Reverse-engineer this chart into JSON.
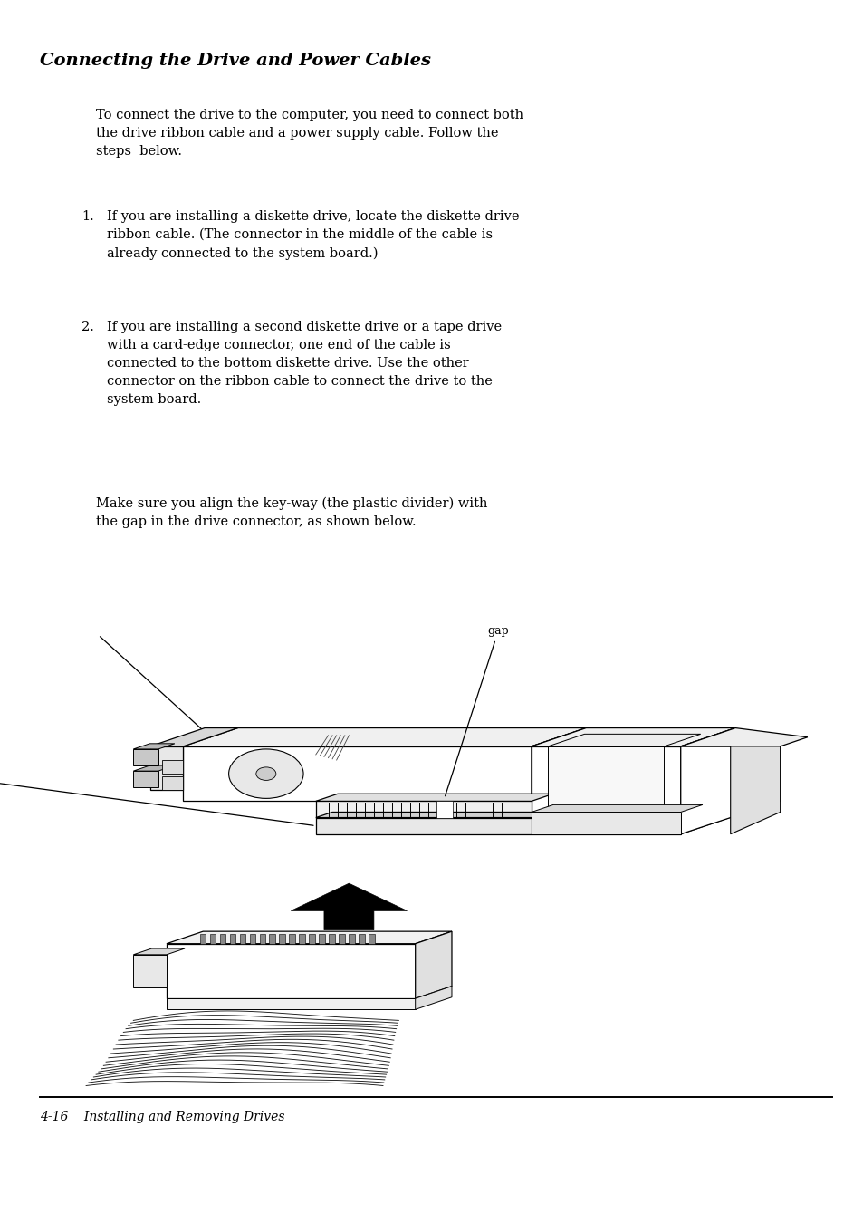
{
  "title": "Connecting the Drive and Power Cables",
  "bg_color": "#ffffff",
  "text_color": "#000000",
  "intro_text": "To connect the drive to the computer, you need to connect both\nthe drive ribbon cable and a power supply cable. Follow the\nsteps  below.",
  "item1_num": "1.",
  "item1_text": "If you are installing a diskette drive, locate the diskette drive\nribbon cable. (The connector in the middle of the cable is\nalready connected to the system board.)",
  "item2_num": "2.",
  "item2_text": "If you are installing a second diskette drive or a tape drive\nwith a card-edge connector, one end of the cable is\nconnected to the bottom diskette drive. Use the other\nconnector on the ribbon cable to connect the drive to the\nsystem board.",
  "make_sure_text": "Make sure you align the key-way (the plastic divider) with\nthe gap in the drive connector, as shown below.",
  "footer_pagenum": "4-16",
  "footer_text": "Installing and Removing Drives",
  "page_width": 9.54,
  "page_height": 13.39,
  "title_fontsize": 14,
  "body_fontsize": 10.5,
  "footer_fontsize": 10
}
